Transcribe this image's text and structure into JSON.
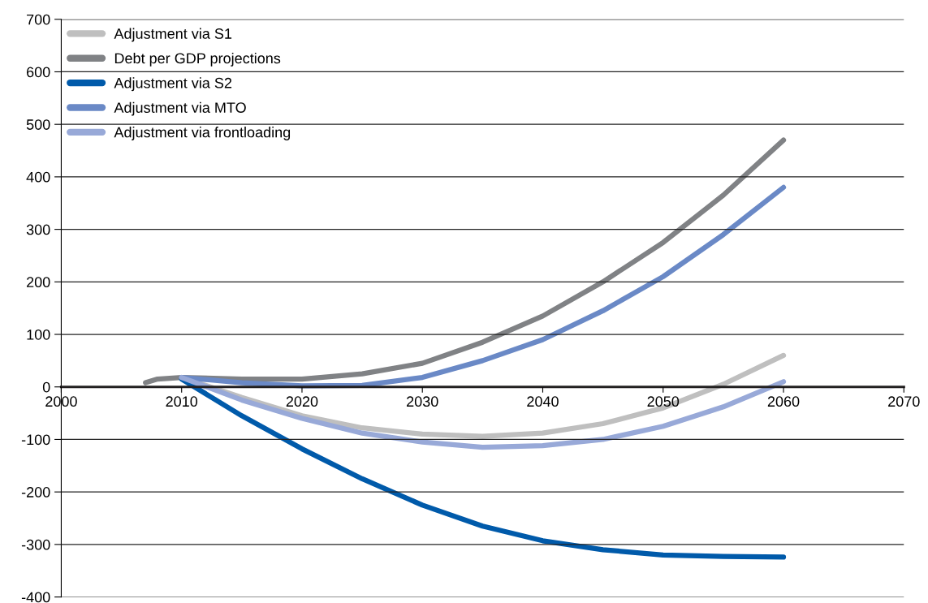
{
  "chart_data": {
    "type": "line",
    "xlim": [
      2000,
      2070
    ],
    "xticks": [
      2000,
      2010,
      2020,
      2030,
      2040,
      2050,
      2060,
      2070
    ],
    "ylim": [
      -400,
      700
    ],
    "yticks": [
      -400,
      -300,
      -200,
      -100,
      0,
      100,
      200,
      300,
      400,
      500,
      600,
      700
    ],
    "grid": "y",
    "legend": "top left",
    "line_style": "solid",
    "marker": "none",
    "series": [
      {
        "name": "Adjustment via S1",
        "color": "#bfbfbf",
        "x": [
          2010,
          2015,
          2020,
          2025,
          2030,
          2035,
          2040,
          2045,
          2050,
          2055,
          2060
        ],
        "values": [
          18,
          -20,
          -55,
          -78,
          -90,
          -94,
          -88,
          -70,
          -40,
          5,
          60
        ]
      },
      {
        "name": "Debt per GDP projections",
        "color": "#808285",
        "x": [
          2007,
          2008,
          2010,
          2015,
          2020,
          2025,
          2030,
          2035,
          2040,
          2045,
          2050,
          2055,
          2060
        ],
        "values": [
          8,
          15,
          18,
          15,
          15,
          25,
          45,
          85,
          135,
          200,
          275,
          365,
          470
        ]
      },
      {
        "name": "Adjustment via S2",
        "color": "#005aaa",
        "x": [
          2010,
          2015,
          2020,
          2025,
          2030,
          2035,
          2040,
          2045,
          2050,
          2055,
          2060
        ],
        "values": [
          15,
          -55,
          -118,
          -175,
          -225,
          -265,
          -293,
          -310,
          -320,
          -323,
          -324
        ]
      },
      {
        "name": "Adjustment via MTO",
        "color": "#6a89c6",
        "x": [
          2010,
          2015,
          2020,
          2025,
          2030,
          2035,
          2040,
          2045,
          2050,
          2055,
          2060
        ],
        "values": [
          18,
          8,
          2,
          3,
          18,
          50,
          90,
          145,
          210,
          290,
          380
        ]
      },
      {
        "name": "Adjustment via frontloading",
        "color": "#98a9d8",
        "x": [
          2010,
          2015,
          2020,
          2025,
          2030,
          2035,
          2040,
          2045,
          2050,
          2055,
          2060
        ],
        "values": [
          18,
          -25,
          -60,
          -88,
          -105,
          -115,
          -112,
          -100,
          -75,
          -38,
          10
        ]
      }
    ]
  }
}
